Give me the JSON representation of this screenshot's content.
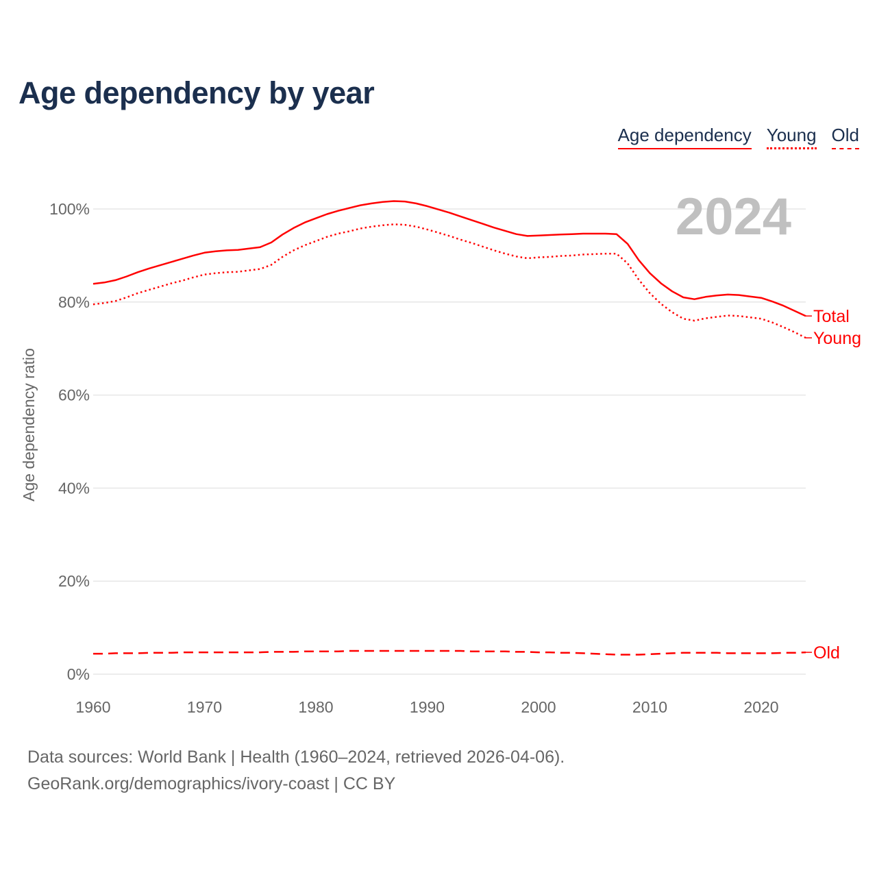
{
  "chart_data": {
    "type": "line",
    "title": "Age dependency by year",
    "ylabel": "Age dependency ratio",
    "xlabel": "",
    "xlim": [
      1960,
      2024
    ],
    "ylim": [
      0,
      110
    ],
    "x_ticks": [
      1960,
      1970,
      1980,
      1990,
      2000,
      2010,
      2020
    ],
    "y_ticks": [
      0,
      20,
      40,
      60,
      80,
      100
    ],
    "y_tick_labels": [
      "0%",
      "20%",
      "40%",
      "60%",
      "80%",
      "100%"
    ],
    "grid": "horizontal",
    "year_watermark": "2024",
    "legend": [
      "Age dependency",
      "Young",
      "Old"
    ],
    "legend_position": "top-right",
    "x_start": 1960,
    "series": [
      {
        "name": "Total",
        "style": "solid",
        "color": "#ff0000",
        "values": [
          83.9,
          84.2,
          84.7,
          85.5,
          86.4,
          87.2,
          87.9,
          88.6,
          89.3,
          90.0,
          90.6,
          90.9,
          91.1,
          91.2,
          91.5,
          91.8,
          92.8,
          94.5,
          95.9,
          97.1,
          98.0,
          98.9,
          99.6,
          100.2,
          100.8,
          101.2,
          101.5,
          101.7,
          101.6,
          101.2,
          100.6,
          99.9,
          99.2,
          98.4,
          97.6,
          96.8,
          96.0,
          95.3,
          94.6,
          94.2,
          94.3,
          94.4,
          94.5,
          94.6,
          94.7,
          94.7,
          94.7,
          94.6,
          92.5,
          89.0,
          86.2,
          84.0,
          82.3,
          81.0,
          80.6,
          81.1,
          81.4,
          81.6,
          81.5,
          81.2,
          80.9,
          80.1,
          79.2,
          78.1,
          77.0
        ]
      },
      {
        "name": "Young",
        "style": "dotted",
        "color": "#ff0000",
        "values": [
          79.5,
          79.8,
          80.2,
          81.0,
          81.9,
          82.6,
          83.3,
          84.0,
          84.6,
          85.3,
          85.9,
          86.2,
          86.4,
          86.5,
          86.8,
          87.1,
          88.0,
          89.7,
          91.1,
          92.2,
          93.1,
          94.0,
          94.7,
          95.2,
          95.8,
          96.2,
          96.5,
          96.7,
          96.6,
          96.2,
          95.6,
          94.9,
          94.2,
          93.4,
          92.7,
          91.9,
          91.1,
          90.4,
          89.8,
          89.4,
          89.6,
          89.7,
          89.9,
          90.0,
          90.2,
          90.3,
          90.4,
          90.4,
          88.3,
          84.8,
          81.9,
          79.6,
          77.8,
          76.4,
          76.0,
          76.5,
          76.8,
          77.1,
          77.0,
          76.7,
          76.4,
          75.6,
          74.6,
          73.5,
          72.3
        ]
      },
      {
        "name": "Old",
        "style": "dashed",
        "color": "#ff0000",
        "values": [
          4.4,
          4.4,
          4.5,
          4.5,
          4.5,
          4.6,
          4.6,
          4.6,
          4.7,
          4.7,
          4.7,
          4.7,
          4.7,
          4.7,
          4.7,
          4.7,
          4.8,
          4.8,
          4.8,
          4.9,
          4.9,
          4.9,
          4.9,
          5.0,
          5.0,
          5.0,
          5.0,
          5.0,
          5.0,
          5.0,
          5.0,
          5.0,
          5.0,
          5.0,
          4.9,
          4.9,
          4.9,
          4.9,
          4.8,
          4.8,
          4.7,
          4.7,
          4.6,
          4.6,
          4.5,
          4.4,
          4.3,
          4.2,
          4.2,
          4.2,
          4.3,
          4.4,
          4.5,
          4.6,
          4.6,
          4.6,
          4.6,
          4.5,
          4.5,
          4.5,
          4.5,
          4.5,
          4.6,
          4.6,
          4.7
        ]
      }
    ]
  },
  "footer": {
    "line1": "Data sources: World Bank | Health (1960–2024, retrieved 2026-04-06).",
    "line2": "GeoRank.org/demographics/ivory-coast | CC BY"
  }
}
